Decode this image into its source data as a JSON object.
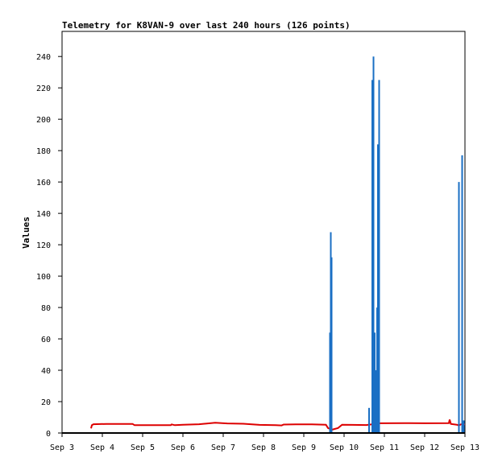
{
  "chart_data": {
    "type": "line",
    "title": "Telemetry for K8VAN-9 over last 240 hours (126 points)",
    "ylabel": "Values",
    "xlabel": "",
    "x_tick_labels": [
      "Sep 3",
      "Sep 4",
      "Sep 5",
      "Sep 6",
      "Sep 7",
      "Sep 8",
      "Sep 9",
      "Sep 10",
      "Sep 11",
      "Sep 12",
      "Sep 13"
    ],
    "y_ticks": [
      0,
      20,
      40,
      60,
      80,
      100,
      120,
      140,
      160,
      180,
      200,
      220,
      240
    ],
    "xlim": [
      3.0,
      13.0
    ],
    "ylim": [
      0,
      256
    ],
    "grid": false,
    "colors": {
      "red_series": "#dd0000",
      "blue_series": "#1a6fc4",
      "black_series": "#000000",
      "axis": "#000000"
    },
    "series": [
      {
        "color": "#dd0000",
        "points": [
          [
            3.72,
            3
          ],
          [
            3.74,
            5
          ],
          [
            3.78,
            5.6
          ],
          [
            4.1,
            5.8
          ],
          [
            4.5,
            5.8
          ],
          [
            4.75,
            5.8
          ],
          [
            4.8,
            5
          ],
          [
            5.2,
            5
          ],
          [
            5.7,
            5
          ],
          [
            5.72,
            5.5
          ],
          [
            5.8,
            5
          ],
          [
            6.0,
            5.3
          ],
          [
            6.4,
            5.6
          ],
          [
            6.8,
            6.5
          ],
          [
            7.1,
            6.1
          ],
          [
            7.5,
            5.9
          ],
          [
            7.9,
            5.2
          ],
          [
            8.3,
            5
          ],
          [
            8.45,
            4.8
          ],
          [
            8.5,
            5.4
          ],
          [
            8.8,
            5.5
          ],
          [
            9.2,
            5.5
          ],
          [
            9.55,
            5.3
          ],
          [
            9.6,
            3.2
          ],
          [
            9.7,
            2.1
          ],
          [
            9.85,
            3.2
          ],
          [
            9.95,
            5.3
          ],
          [
            10.2,
            5.2
          ],
          [
            10.55,
            5.1
          ],
          [
            10.65,
            5.4
          ],
          [
            10.9,
            6.2
          ],
          [
            11.5,
            6.3
          ],
          [
            12.0,
            6.2
          ],
          [
            12.6,
            6.3
          ],
          [
            12.62,
            8.5
          ],
          [
            12.65,
            5.8
          ],
          [
            12.8,
            5.3
          ],
          [
            12.85,
            4.8
          ],
          [
            12.9,
            5.5
          ],
          [
            13.0,
            5.5
          ]
        ]
      },
      {
        "color": "#1a6fc4",
        "type": "spikes",
        "points": [
          [
            9.65,
            64
          ],
          [
            9.67,
            128
          ],
          [
            9.69,
            112
          ],
          [
            10.62,
            16
          ],
          [
            10.7,
            225
          ],
          [
            10.73,
            240
          ],
          [
            10.76,
            64
          ],
          [
            10.79,
            40
          ],
          [
            10.82,
            80
          ],
          [
            10.84,
            184
          ],
          [
            10.87,
            225
          ],
          [
            12.85,
            160
          ],
          [
            12.93,
            177
          ],
          [
            12.97,
            8
          ]
        ]
      },
      {
        "color": "#000000",
        "points": [
          [
            3.0,
            0
          ],
          [
            13.0,
            0
          ]
        ]
      }
    ]
  }
}
